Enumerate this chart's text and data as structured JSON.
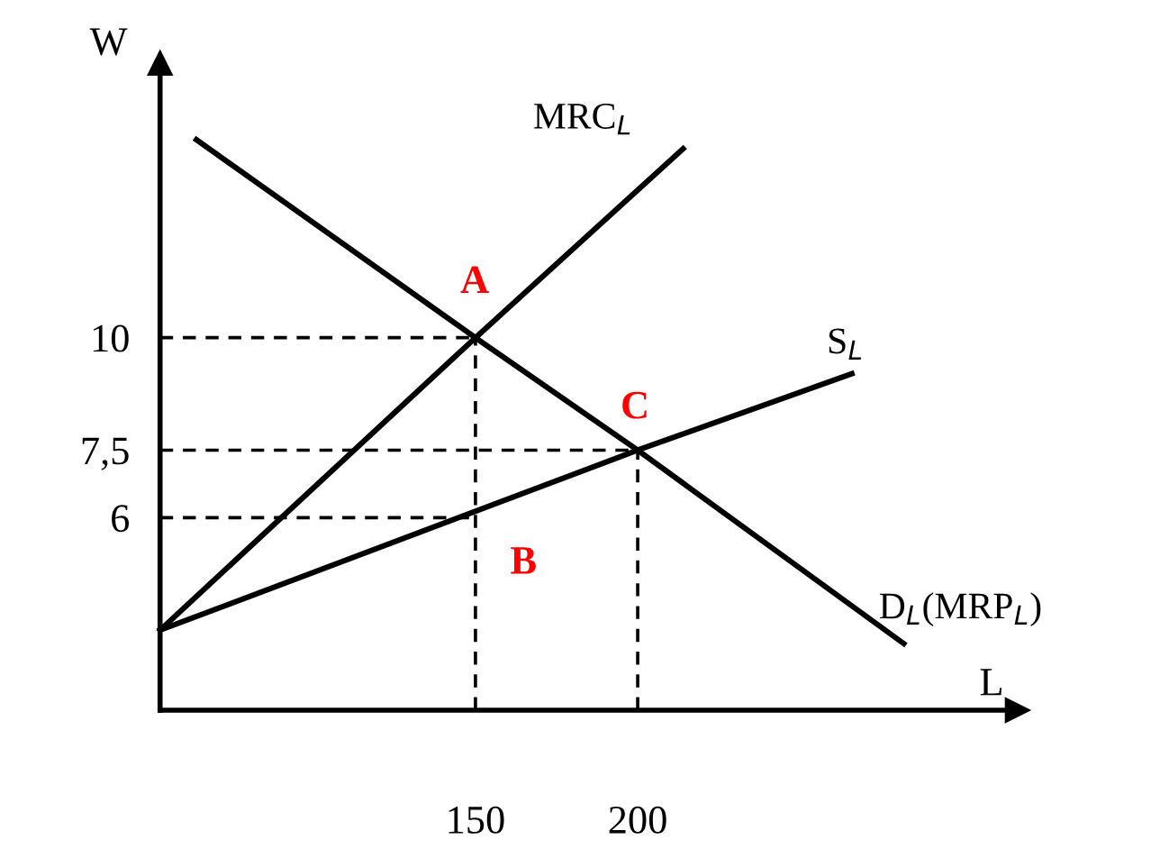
{
  "chart_data": {
    "type": "line",
    "xlabel": "L",
    "ylabel": "W",
    "xlim": [
      52.8,
      317
    ],
    "ylim": [
      1.72,
      16.1
    ],
    "xticks": [
      150,
      200
    ],
    "yticks": [
      6,
      {
        "value": 7.5,
        "label": "7,5"
      },
      10
    ],
    "grid": false,
    "legend": false,
    "marker": "none",
    "series": [
      {
        "name": "MRC$_{L}$",
        "color": "#000000",
        "x": [
          52.8,
          150,
          214
        ],
        "values": [
          3.5,
          10,
          14.2
        ]
      },
      {
        "name": "S$_{L}$",
        "color": "#000000",
        "x": [
          52.8,
          200,
          266
        ],
        "values": [
          3.5,
          7.5,
          9.2
        ]
      },
      {
        "name": "D$_{L}$(MRP$_{L}$)",
        "color": "#000000",
        "x": [
          64,
          150,
          200,
          282
        ],
        "values": [
          14.4,
          10,
          7.5,
          3.2
        ]
      },
      {
        "color": "#000000",
        "line_style": "dashed",
        "x": [
          52.8,
          150
        ],
        "values": [
          10,
          10
        ]
      },
      {
        "color": "#000000",
        "line_style": "dashed",
        "x": [
          52.8,
          200
        ],
        "values": [
          7.5,
          7.5
        ]
      },
      {
        "color": "#000000",
        "line_style": "dashed",
        "x": [
          52.8,
          150
        ],
        "values": [
          6,
          6
        ]
      },
      {
        "color": "#000000",
        "line_style": "dashed",
        "x": [
          150,
          150
        ],
        "values": [
          1.72,
          10
        ]
      },
      {
        "color": "#000000",
        "line_style": "dashed",
        "x": [
          200,
          200
        ],
        "values": [
          1.72,
          7.5
        ]
      }
    ],
    "annotations": [
      "A",
      "B",
      "C"
    ]
  }
}
